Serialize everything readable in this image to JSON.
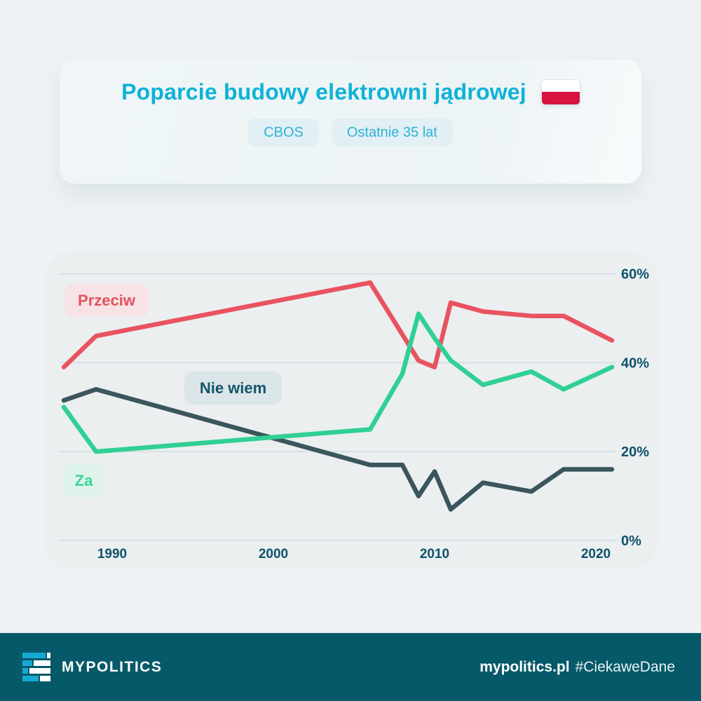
{
  "header": {
    "title": "Poparcie budowy elektrowni jądrowej",
    "title_color": "#0fb2d6",
    "flag_icon": "poland-flag",
    "flag_colors": {
      "top": "#ffffff",
      "bottom": "#d9133f"
    },
    "badges": [
      {
        "label": "CBOS"
      },
      {
        "label": "Ostatnie 35 lat"
      }
    ]
  },
  "chart_data": {
    "type": "line",
    "title": "Poparcie budowy elektrowni jądrowej",
    "xlabel": "",
    "ylabel": "",
    "xlim": [
      1987,
      2021
    ],
    "ylim": [
      0,
      63
    ],
    "grid": true,
    "legend_position": "inline-pills",
    "x_ticks": [
      {
        "value": 1990,
        "label": "1990"
      },
      {
        "value": 2000,
        "label": "2000"
      },
      {
        "value": 2010,
        "label": "2010"
      },
      {
        "value": 2020,
        "label": "2020"
      }
    ],
    "y_ticks": [
      {
        "value": 60,
        "label": "60%"
      },
      {
        "value": 40,
        "label": "40%"
      },
      {
        "value": 20,
        "label": "20%"
      },
      {
        "value": 0,
        "label": "0%"
      }
    ],
    "series": [
      {
        "name": "Przeciw",
        "color": "#e9535f",
        "points": [
          [
            1987,
            39
          ],
          [
            1989,
            46
          ],
          [
            2006,
            58
          ],
          [
            2009,
            40.5
          ],
          [
            2010,
            39
          ],
          [
            2011,
            53.5
          ],
          [
            2013,
            51.5
          ],
          [
            2016,
            50.5
          ],
          [
            2018,
            50.5
          ],
          [
            2021,
            45
          ]
        ]
      },
      {
        "name": "Nie wiem",
        "color": "#3b555d",
        "points": [
          [
            1987,
            31.5
          ],
          [
            1989,
            34
          ],
          [
            2006,
            17
          ],
          [
            2008,
            17
          ],
          [
            2009,
            10
          ],
          [
            2010,
            15.5
          ],
          [
            2011,
            7
          ],
          [
            2013,
            13
          ],
          [
            2016,
            11
          ],
          [
            2018,
            16
          ],
          [
            2021,
            16
          ]
        ]
      },
      {
        "name": "Za",
        "color": "#30d094",
        "points": [
          [
            1987,
            30
          ],
          [
            1989,
            20
          ],
          [
            2006,
            25
          ],
          [
            2008,
            37.5
          ],
          [
            2009,
            51
          ],
          [
            2010,
            45.5
          ],
          [
            2011,
            40.5
          ],
          [
            2013,
            35
          ],
          [
            2016,
            38
          ],
          [
            2018,
            34
          ],
          [
            2021,
            39
          ]
        ]
      }
    ],
    "axis_label_color": "#0f536a",
    "gridline_color": "#d8e3e7"
  },
  "footer": {
    "brand": "MYPOLITICS",
    "site": "mypolitics.pl",
    "hashtag": "#CiekaweDane",
    "logo_icon": "equalizer-bars-logo",
    "logo_accent": "#16a9d3"
  }
}
